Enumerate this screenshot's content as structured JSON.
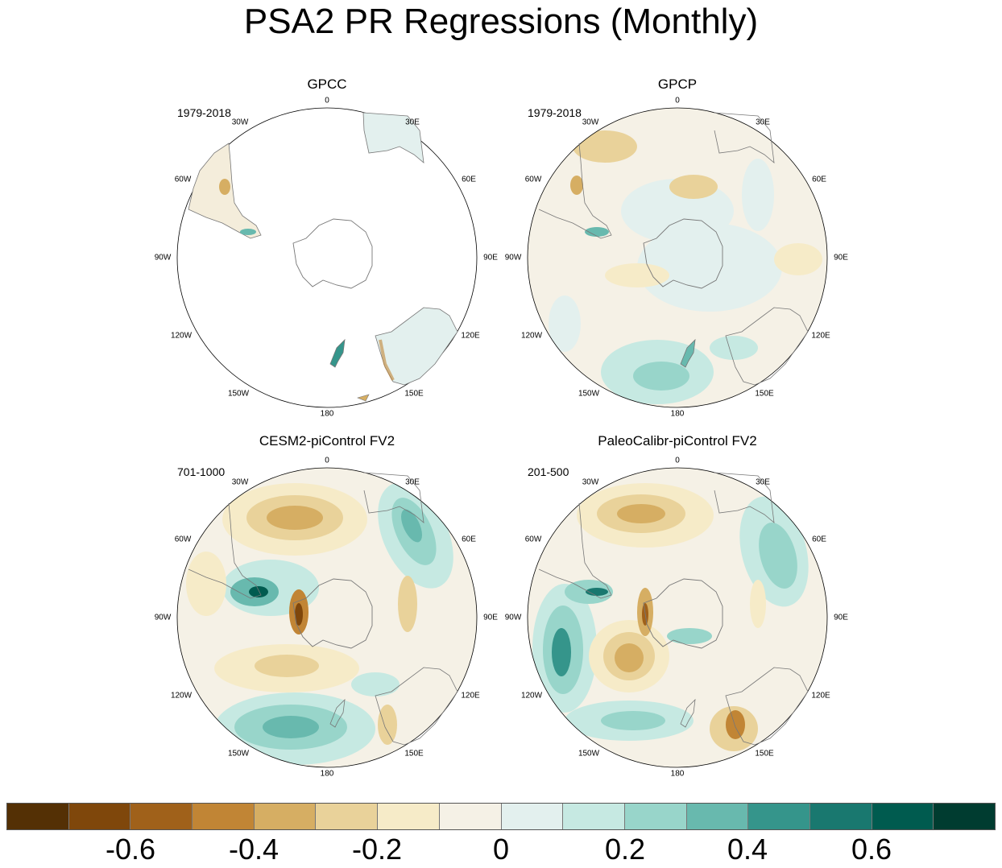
{
  "title": "PSA2 PR Regressions (Monthly)",
  "panels": [
    {
      "name": "GPCC",
      "period": "1979-2018",
      "lon_labels": [
        "0",
        "30E",
        "60E",
        "90E",
        "120E",
        "150E",
        "180",
        "150W",
        "120W",
        "90W",
        "60W",
        "30W"
      ]
    },
    {
      "name": "GPCP",
      "period": "1979-2018",
      "lon_labels": [
        "0",
        "30E",
        "60E",
        "90E",
        "120E",
        "150E",
        "180",
        "150W",
        "120W",
        "90W",
        "60W",
        "30W"
      ]
    },
    {
      "name": "CESM2-piControl FV2",
      "period": "701-1000",
      "lon_labels": [
        "0",
        "30E",
        "60E",
        "90E",
        "120E",
        "150E",
        "180",
        "150W",
        "120W",
        "90W",
        "60W",
        "30W"
      ]
    },
    {
      "name": "PaleoCalibr-piControl FV2",
      "period": "201-500",
      "lon_labels": [
        "0",
        "30E",
        "60E",
        "90E",
        "120E",
        "150E",
        "180",
        "150W",
        "120W",
        "90W",
        "60W",
        "30W"
      ]
    }
  ],
  "colorbar": {
    "colors": [
      "#543005",
      "#7f470b",
      "#a0611a",
      "#c18535",
      "#d6ae63",
      "#e9d29a",
      "#f6ebc8",
      "#f5f1e6",
      "#e3f0ee",
      "#c6e9e2",
      "#98d5ca",
      "#68b9ae",
      "#35958b",
      "#19786f",
      "#005b4f",
      "#003c30"
    ],
    "labels": [
      "-0.6",
      "-0.4",
      "-0.2",
      "0",
      "0.2",
      "0.4",
      "0.6"
    ]
  },
  "colors": {
    "ocean": "#ffffff",
    "coast": "#777777"
  }
}
